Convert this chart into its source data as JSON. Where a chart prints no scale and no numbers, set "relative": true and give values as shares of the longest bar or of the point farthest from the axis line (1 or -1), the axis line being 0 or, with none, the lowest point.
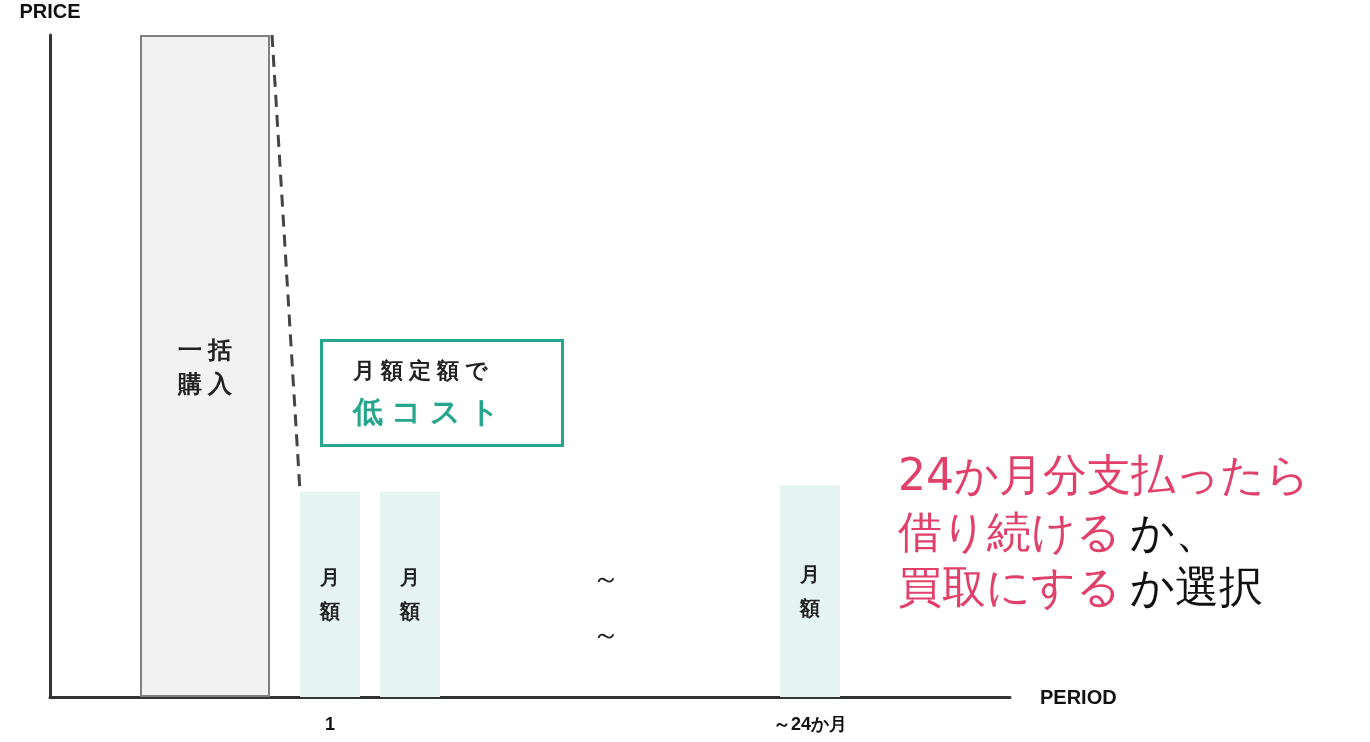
{
  "chart_data": {
    "type": "bar",
    "relative": true,
    "xlabel": "PERIOD",
    "ylabel": "PRICE",
    "categories": [
      null,
      null,
      null,
      "1",
      null,
      null,
      null,
      null,
      null,
      "～24か月",
      null,
      null
    ],
    "series": [
      {
        "name": "一括購入",
        "color": "#f2f2f2",
        "values": [
          null,
          1,
          null,
          null,
          null,
          null,
          null,
          null,
          null,
          null,
          null,
          null
        ]
      },
      {
        "name": "月額",
        "color": "#e5f4f0",
        "values": [
          null,
          null,
          null,
          0.31,
          0.31,
          null,
          null,
          null,
          null,
          0.32,
          null,
          null
        ]
      }
    ],
    "annotations": [
      "月額定額で",
      "低コスト",
      "24か月分支払ったら",
      "借り続ける",
      "か、",
      "買取にする",
      "か選択",
      "～",
      "～"
    ],
    "grid": false,
    "legend": false
  }
}
